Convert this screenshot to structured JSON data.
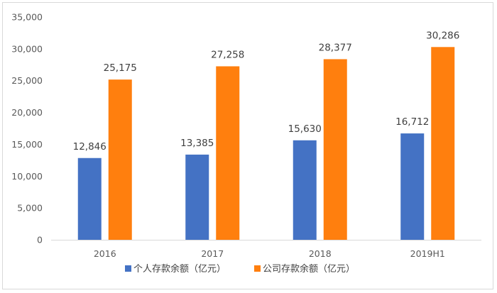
{
  "chart_data": {
    "type": "bar",
    "categories": [
      "2016",
      "2017",
      "2018",
      "2019H1"
    ],
    "series": [
      {
        "name": "个人存款余额（亿元）",
        "color": "#4472c4",
        "values": [
          12846,
          13385,
          15630,
          16712
        ],
        "labels": [
          "12,846",
          "13,385",
          "15,630",
          "16,712"
        ]
      },
      {
        "name": "公司存款余额（亿元）",
        "color": "#ff7f0e",
        "values": [
          25175,
          27258,
          28377,
          30286
        ],
        "labels": [
          "25,175",
          "27,258",
          "28,377",
          "30,286"
        ]
      }
    ],
    "ylim": [
      0,
      35000
    ],
    "yticks": [
      0,
      5000,
      10000,
      15000,
      20000,
      25000,
      30000,
      35000
    ],
    "ytick_labels": [
      "0",
      "5,000",
      "10,000",
      "15,000",
      "20,000",
      "25,000",
      "30,000",
      "35,000"
    ],
    "grid": false,
    "legend_position": "bottom",
    "title": "",
    "xlabel": "",
    "ylabel": ""
  }
}
